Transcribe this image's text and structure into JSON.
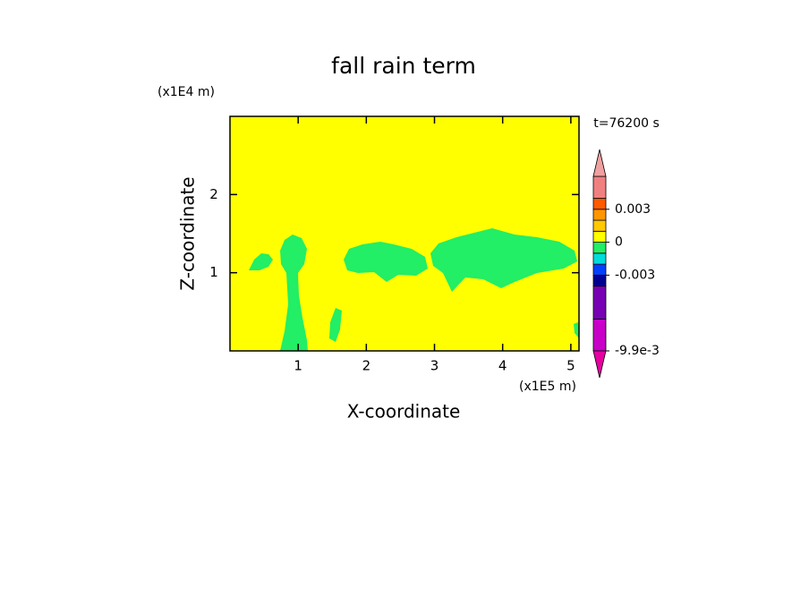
{
  "chart_data": {
    "type": "contour",
    "title": "fall rain term",
    "x_label": "X-coordinate",
    "y_label": "Z-coordinate",
    "x_unit": "(x1E5 m)",
    "y_unit": "(x1E4 m)",
    "annotation": "t=76200 s",
    "xlim": [
      0,
      5.12
    ],
    "xticks": [
      1,
      2,
      3,
      4,
      5
    ],
    "ylim": [
      0,
      3
    ],
    "yticks": [
      1,
      2
    ],
    "levels": [
      -0.0099,
      -0.007,
      -0.004,
      -0.003,
      -0.002,
      -0.001,
      0,
      0.001,
      0.002,
      0.003,
      0.004,
      0.006
    ],
    "colors": [
      "#c800c8",
      "#7800b4",
      "#000090",
      "#0040ff",
      "#00dcdc",
      "#22ee66",
      "#ffff00",
      "#ffc800",
      "#ff9600",
      "#ff5a00",
      "#f08080"
    ],
    "extend_colors": [
      "#e600a0",
      "#f0a0a0"
    ],
    "colorbar_ticks": [
      {
        "value": -0.0099,
        "label": "-9.9e-3"
      },
      -0.003,
      0,
      0.003
    ]
  }
}
